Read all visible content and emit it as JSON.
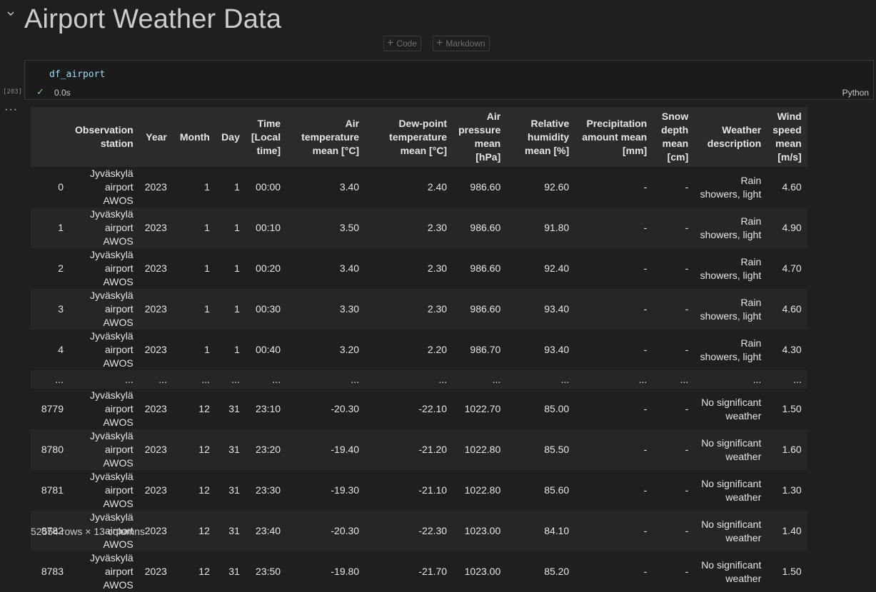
{
  "heading": "Airport Weather Data",
  "add_cell": {
    "code_label": "Code",
    "markdown_label": "Markdown"
  },
  "cell": {
    "exec_count": "[203]",
    "code": "df_airport",
    "status_time": "0.0s",
    "language": "Python"
  },
  "table": {
    "columns": [
      "",
      "Observation station",
      "Year",
      "Month",
      "Day",
      "Time [Local time]",
      "Air temperature mean [°C]",
      "Dew-point temperature mean [°C]",
      "Air pressure mean [hPa]",
      "Relative humidity mean [%]",
      "Precipitation amount mean [mm]",
      "Snow depth mean [cm]",
      "Weather description",
      "Wind speed mean [m/s]"
    ],
    "rows": [
      [
        "0",
        "Jyväskylä airport AWOS",
        "2023",
        "1",
        "1",
        "00:00",
        "3.40",
        "2.40",
        "986.60",
        "92.60",
        "-",
        "-",
        "Rain showers, light",
        "4.60"
      ],
      [
        "1",
        "Jyväskylä airport AWOS",
        "2023",
        "1",
        "1",
        "00:10",
        "3.50",
        "2.30",
        "986.60",
        "91.80",
        "-",
        "-",
        "Rain showers, light",
        "4.90"
      ],
      [
        "2",
        "Jyväskylä airport AWOS",
        "2023",
        "1",
        "1",
        "00:20",
        "3.40",
        "2.30",
        "986.60",
        "92.40",
        "-",
        "-",
        "Rain showers, light",
        "4.70"
      ],
      [
        "3",
        "Jyväskylä airport AWOS",
        "2023",
        "1",
        "1",
        "00:30",
        "3.30",
        "2.30",
        "986.60",
        "93.40",
        "-",
        "-",
        "Rain showers, light",
        "4.60"
      ],
      [
        "4",
        "Jyväskylä airport AWOS",
        "2023",
        "1",
        "1",
        "00:40",
        "3.20",
        "2.20",
        "986.70",
        "93.40",
        "-",
        "-",
        "Rain showers, light",
        "4.30"
      ],
      [
        "...",
        "...",
        "...",
        "...",
        "...",
        "...",
        "...",
        "...",
        "...",
        "...",
        "...",
        "...",
        "...",
        "..."
      ],
      [
        "8779",
        "Jyväskylä airport AWOS",
        "2023",
        "12",
        "31",
        "23:10",
        "-20.30",
        "-22.10",
        "1022.70",
        "85.00",
        "-",
        "-",
        "No significant weather",
        "1.50"
      ],
      [
        "8780",
        "Jyväskylä airport AWOS",
        "2023",
        "12",
        "31",
        "23:20",
        "-19.40",
        "-21.20",
        "1022.80",
        "85.50",
        "-",
        "-",
        "No significant weather",
        "1.60"
      ],
      [
        "8781",
        "Jyväskylä airport AWOS",
        "2023",
        "12",
        "31",
        "23:30",
        "-19.30",
        "-21.10",
        "1022.80",
        "85.60",
        "-",
        "-",
        "No significant weather",
        "1.30"
      ],
      [
        "8782",
        "Jyväskylä airport AWOS",
        "2023",
        "12",
        "31",
        "23:40",
        "-20.30",
        "-22.30",
        "1023.00",
        "84.10",
        "-",
        "-",
        "No significant weather",
        "1.40"
      ],
      [
        "8783",
        "Jyväskylä airport AWOS",
        "2023",
        "12",
        "31",
        "23:50",
        "-19.80",
        "-21.70",
        "1023.00",
        "85.20",
        "-",
        "-",
        "No significant weather",
        "1.50"
      ]
    ],
    "shape": "52554 rows × 13 columns"
  },
  "icons": {
    "chevron": "chevron-down-icon",
    "check": "check-icon",
    "plus": "plus-icon",
    "more": "more-icon"
  },
  "colors": {
    "background": "#1f1f1f",
    "code_variable": "#9cdcfe",
    "success_check": "#89d185",
    "header_bg": "#2b2b2b",
    "stripe_bg": "#262626"
  }
}
